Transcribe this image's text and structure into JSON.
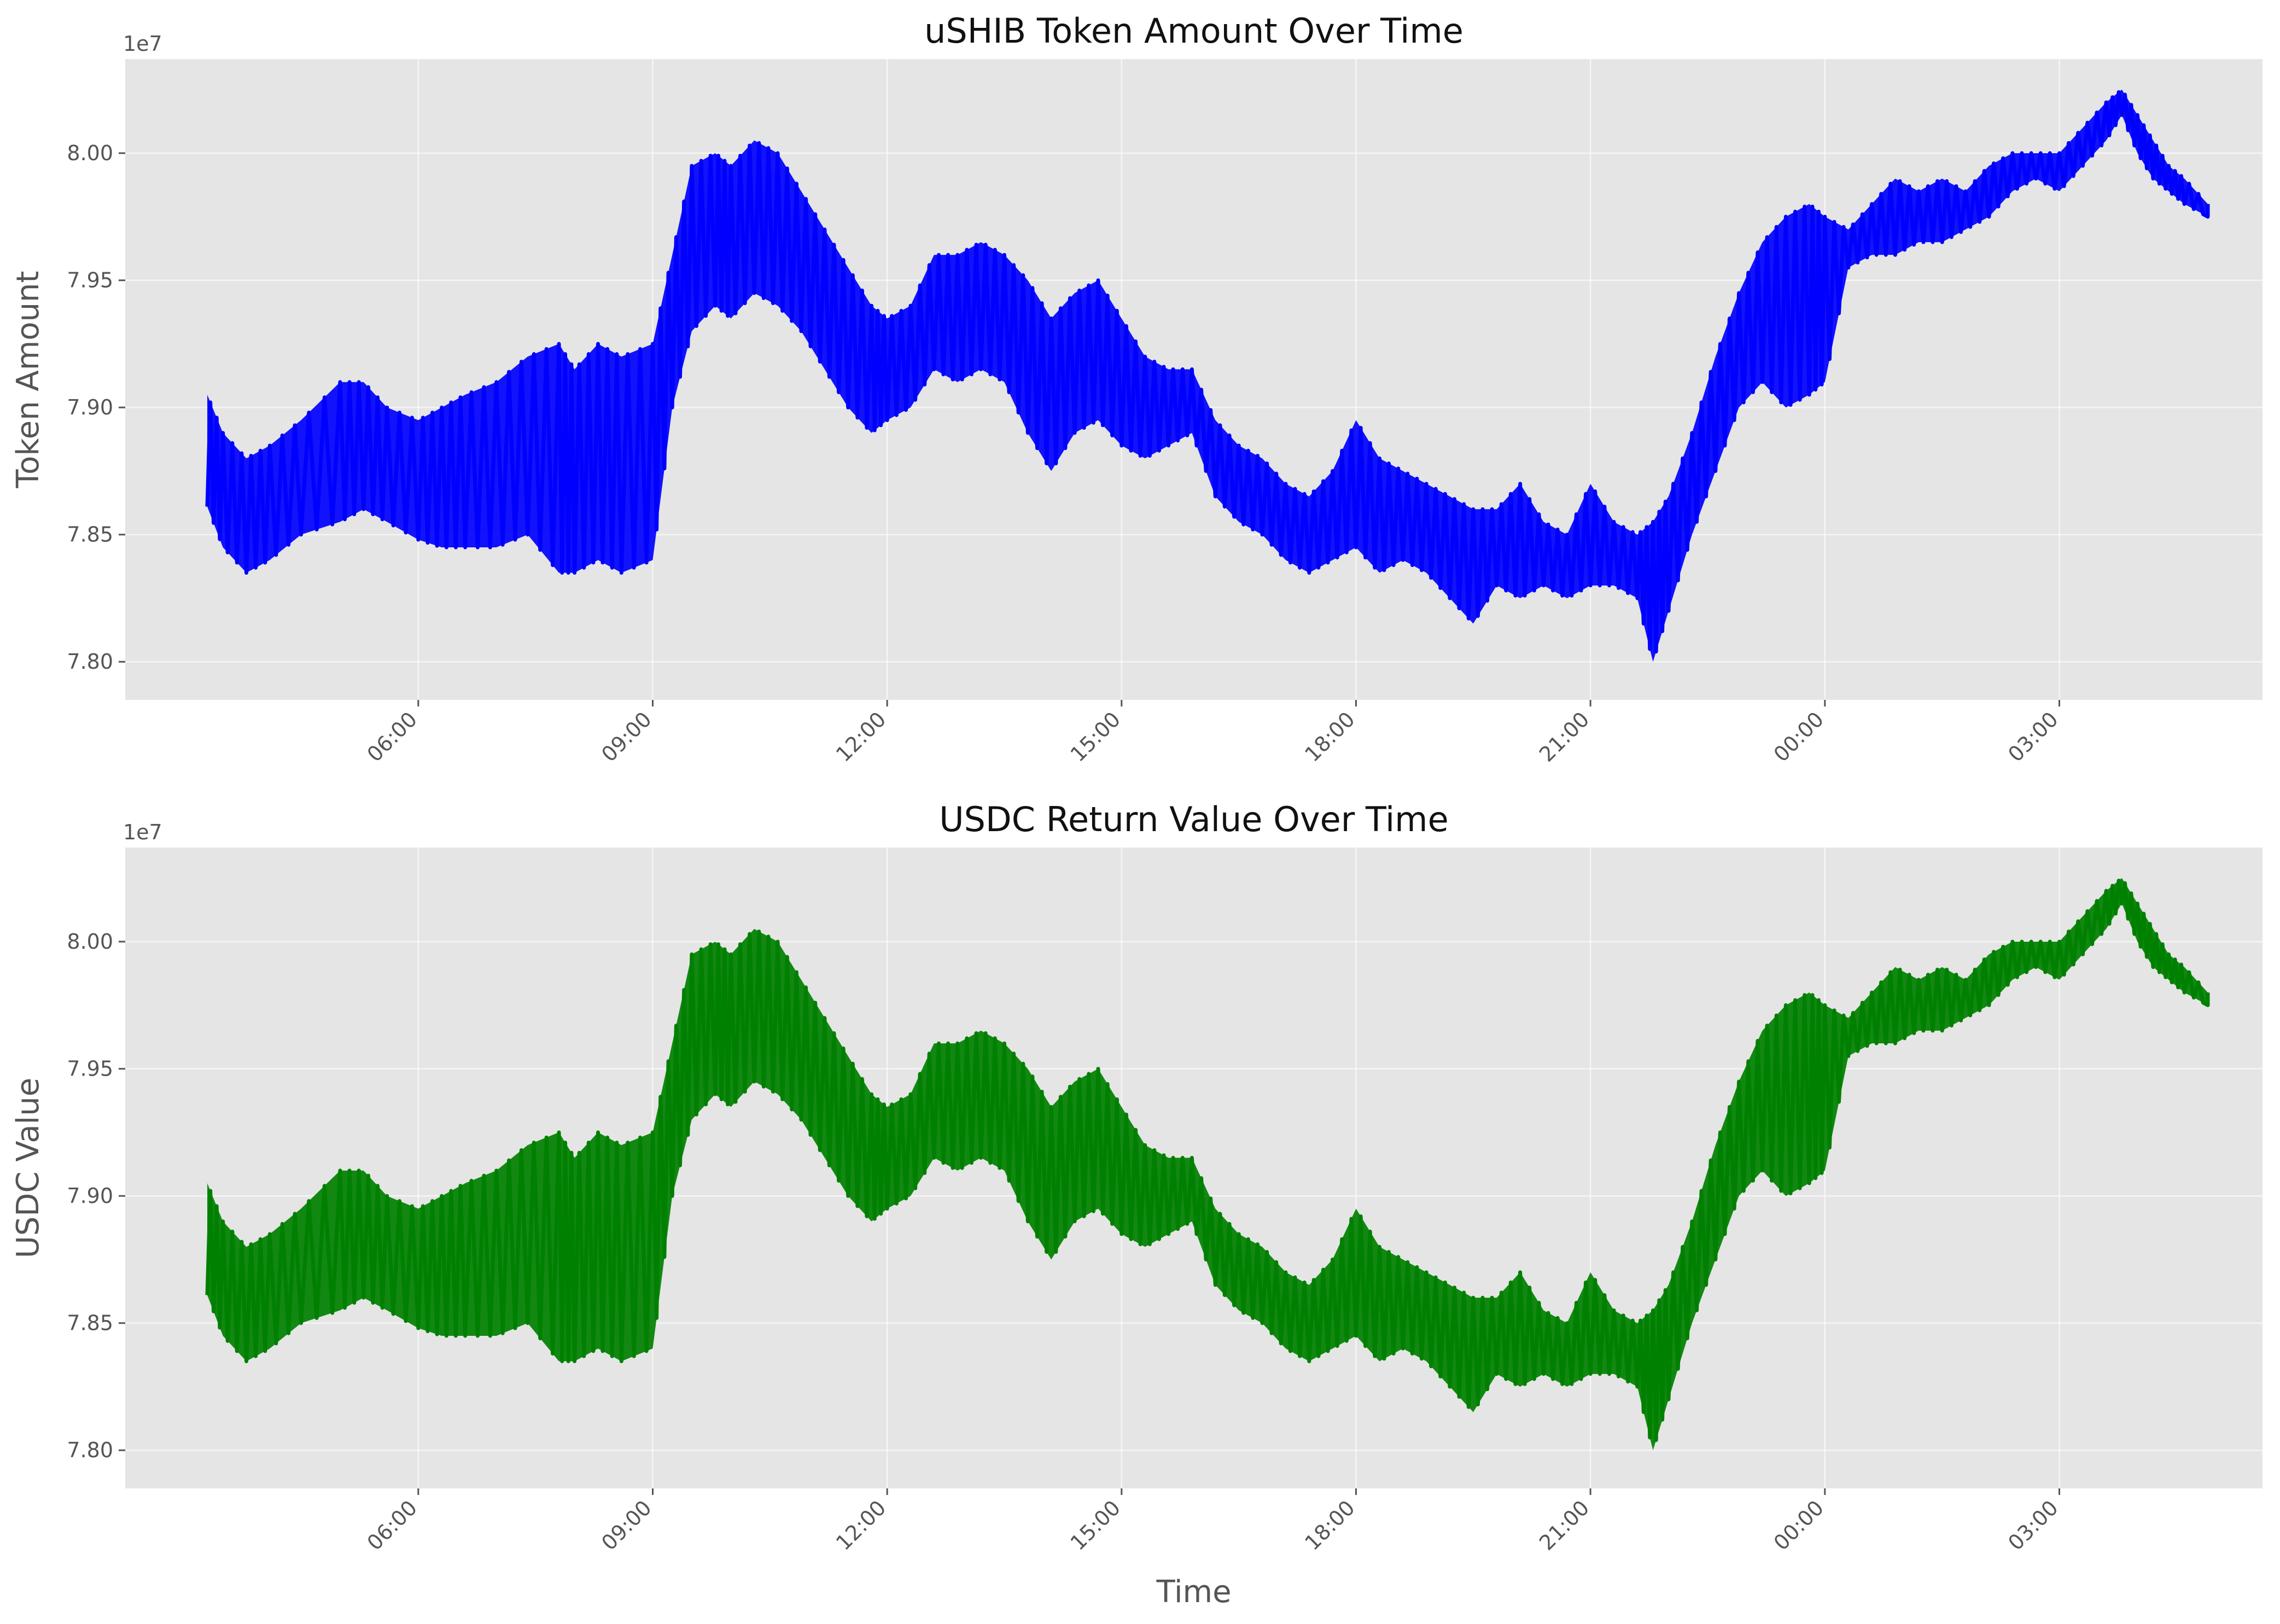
{
  "chart_data": [
    {
      "type": "line",
      "title": "uSHIB Token Amount Over Time",
      "xlabel": "",
      "ylabel": "Token Amount",
      "y_offset_label": "1e7",
      "y_scale_factor": 10000000,
      "xlim_hours": [
        2.25,
        29.6
      ],
      "ylim": [
        7.785,
        8.037
      ],
      "x_ticks": [
        "06:00",
        "09:00",
        "12:00",
        "15:00",
        "18:00",
        "21:00",
        "00:00",
        "03:00"
      ],
      "y_ticks": [
        "7.80",
        "7.85",
        "7.90",
        "7.95",
        "8.00"
      ],
      "grid": true,
      "legend": "none",
      "series_color": "#0000ff",
      "x_hours": [
        3.3,
        3.5,
        3.8,
        4.1,
        4.5,
        5.0,
        5.3,
        5.6,
        6.0,
        6.3,
        6.6,
        7.0,
        7.4,
        7.8,
        8.0,
        8.3,
        8.6,
        9.0,
        9.25,
        9.5,
        9.8,
        10.0,
        10.3,
        10.6,
        10.9,
        11.2,
        11.5,
        11.8,
        12.0,
        12.3,
        12.6,
        12.9,
        13.2,
        13.5,
        13.8,
        14.1,
        14.4,
        14.7,
        15.0,
        15.3,
        15.6,
        15.9,
        16.2,
        16.5,
        16.8,
        17.1,
        17.4,
        17.7,
        18.0,
        18.3,
        18.6,
        18.9,
        19.2,
        19.5,
        19.8,
        20.1,
        20.4,
        20.7,
        21.0,
        21.3,
        21.6,
        21.8,
        22.0,
        22.3,
        22.6,
        22.9,
        23.2,
        23.5,
        23.8,
        24.0,
        24.3,
        24.6,
        24.9,
        25.2,
        25.5,
        25.8,
        26.1,
        26.4,
        26.7,
        27.0,
        27.3,
        27.6,
        27.8,
        28.0,
        28.2,
        28.4,
        28.6,
        28.9
      ],
      "y_low": [
        7.861,
        7.845,
        7.835,
        7.84,
        7.85,
        7.855,
        7.86,
        7.855,
        7.848,
        7.845,
        7.845,
        7.845,
        7.85,
        7.835,
        7.835,
        7.84,
        7.835,
        7.84,
        7.9,
        7.93,
        7.94,
        7.935,
        7.945,
        7.94,
        7.93,
        7.915,
        7.9,
        7.89,
        7.895,
        7.9,
        7.915,
        7.91,
        7.915,
        7.91,
        7.89,
        7.875,
        7.89,
        7.895,
        7.885,
        7.88,
        7.885,
        7.89,
        7.865,
        7.855,
        7.85,
        7.84,
        7.835,
        7.84,
        7.845,
        7.835,
        7.84,
        7.835,
        7.825,
        7.815,
        7.83,
        7.825,
        7.83,
        7.825,
        7.83,
        7.83,
        7.825,
        7.8,
        7.82,
        7.85,
        7.875,
        7.9,
        7.91,
        7.9,
        7.905,
        7.91,
        7.955,
        7.96,
        7.96,
        7.965,
        7.965,
        7.97,
        7.975,
        7.985,
        7.99,
        7.985,
        7.995,
        8.005,
        8.015,
        8.0,
        7.99,
        7.985,
        7.98,
        7.975
      ],
      "y_high": [
        7.905,
        7.89,
        7.88,
        7.885,
        7.895,
        7.91,
        7.91,
        7.9,
        7.895,
        7.9,
        7.905,
        7.91,
        7.92,
        7.925,
        7.915,
        7.925,
        7.92,
        7.925,
        7.96,
        7.995,
        8.0,
        7.995,
        8.005,
        8.0,
        7.985,
        7.97,
        7.955,
        7.94,
        7.935,
        7.94,
        7.96,
        7.96,
        7.965,
        7.96,
        7.95,
        7.935,
        7.945,
        7.95,
        7.935,
        7.92,
        7.915,
        7.915,
        7.895,
        7.885,
        7.88,
        7.87,
        7.865,
        7.875,
        7.895,
        7.88,
        7.875,
        7.87,
        7.865,
        7.86,
        7.86,
        7.87,
        7.855,
        7.85,
        7.87,
        7.855,
        7.85,
        7.855,
        7.865,
        7.89,
        7.92,
        7.945,
        7.965,
        7.975,
        7.98,
        7.975,
        7.97,
        7.98,
        7.99,
        7.985,
        7.99,
        7.985,
        7.995,
        8.0,
        8.0,
        8.0,
        8.01,
        8.02,
        8.025,
        8.015,
        8.005,
        7.995,
        7.99,
        7.98
      ]
    },
    {
      "type": "line",
      "title": "USDC Return Value Over Time",
      "xlabel": "Time",
      "ylabel": "USDC Value",
      "y_offset_label": "1e7",
      "y_scale_factor": 10000000,
      "xlim_hours": [
        2.25,
        29.6
      ],
      "ylim": [
        7.785,
        8.037
      ],
      "x_ticks": [
        "06:00",
        "09:00",
        "12:00",
        "15:00",
        "18:00",
        "21:00",
        "00:00",
        "03:00"
      ],
      "y_ticks": [
        "7.80",
        "7.85",
        "7.90",
        "7.95",
        "8.00"
      ],
      "grid": true,
      "legend": "none",
      "series_color": "#008000",
      "x_hours": [
        3.3,
        3.5,
        3.8,
        4.1,
        4.5,
        5.0,
        5.3,
        5.6,
        6.0,
        6.3,
        6.6,
        7.0,
        7.4,
        7.8,
        8.0,
        8.3,
        8.6,
        9.0,
        9.25,
        9.5,
        9.8,
        10.0,
        10.3,
        10.6,
        10.9,
        11.2,
        11.5,
        11.8,
        12.0,
        12.3,
        12.6,
        12.9,
        13.2,
        13.5,
        13.8,
        14.1,
        14.4,
        14.7,
        15.0,
        15.3,
        15.6,
        15.9,
        16.2,
        16.5,
        16.8,
        17.1,
        17.4,
        17.7,
        18.0,
        18.3,
        18.6,
        18.9,
        19.2,
        19.5,
        19.8,
        20.1,
        20.4,
        20.7,
        21.0,
        21.3,
        21.6,
        21.8,
        22.0,
        22.3,
        22.6,
        22.9,
        23.2,
        23.5,
        23.8,
        24.0,
        24.3,
        24.6,
        24.9,
        25.2,
        25.5,
        25.8,
        26.1,
        26.4,
        26.7,
        27.0,
        27.3,
        27.6,
        27.8,
        28.0,
        28.2,
        28.4,
        28.6,
        28.9
      ],
      "y_low": [
        7.861,
        7.845,
        7.835,
        7.84,
        7.85,
        7.855,
        7.86,
        7.855,
        7.848,
        7.845,
        7.845,
        7.845,
        7.85,
        7.835,
        7.835,
        7.84,
        7.835,
        7.84,
        7.9,
        7.93,
        7.94,
        7.935,
        7.945,
        7.94,
        7.93,
        7.915,
        7.9,
        7.89,
        7.895,
        7.9,
        7.915,
        7.91,
        7.915,
        7.91,
        7.89,
        7.875,
        7.89,
        7.895,
        7.885,
        7.88,
        7.885,
        7.89,
        7.865,
        7.855,
        7.85,
        7.84,
        7.835,
        7.84,
        7.845,
        7.835,
        7.84,
        7.835,
        7.825,
        7.815,
        7.83,
        7.825,
        7.83,
        7.825,
        7.83,
        7.83,
        7.825,
        7.8,
        7.82,
        7.85,
        7.875,
        7.9,
        7.91,
        7.9,
        7.905,
        7.91,
        7.955,
        7.96,
        7.96,
        7.965,
        7.965,
        7.97,
        7.975,
        7.985,
        7.99,
        7.985,
        7.995,
        8.005,
        8.015,
        8.0,
        7.99,
        7.985,
        7.98,
        7.975
      ],
      "y_high": [
        7.905,
        7.89,
        7.88,
        7.885,
        7.895,
        7.91,
        7.91,
        7.9,
        7.895,
        7.9,
        7.905,
        7.91,
        7.92,
        7.925,
        7.915,
        7.925,
        7.92,
        7.925,
        7.96,
        7.995,
        8.0,
        7.995,
        8.005,
        8.0,
        7.985,
        7.97,
        7.955,
        7.94,
        7.935,
        7.94,
        7.96,
        7.96,
        7.965,
        7.96,
        7.95,
        7.935,
        7.945,
        7.95,
        7.935,
        7.92,
        7.915,
        7.915,
        7.895,
        7.885,
        7.88,
        7.87,
        7.865,
        7.875,
        7.895,
        7.88,
        7.875,
        7.87,
        7.865,
        7.86,
        7.86,
        7.87,
        7.855,
        7.85,
        7.87,
        7.855,
        7.85,
        7.855,
        7.865,
        7.89,
        7.92,
        7.945,
        7.965,
        7.975,
        7.98,
        7.975,
        7.97,
        7.98,
        7.99,
        7.985,
        7.99,
        7.985,
        7.995,
        8.0,
        8.0,
        8.0,
        8.01,
        8.02,
        8.025,
        8.015,
        8.005,
        7.995,
        7.99,
        7.98
      ]
    }
  ]
}
